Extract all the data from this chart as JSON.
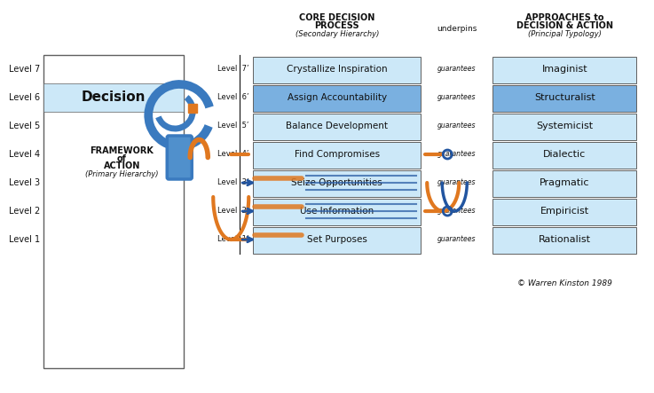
{
  "bg_color": "#ffffff",
  "color_light_blue": "#cce8f8",
  "color_medium_blue": "#7ab0e0",
  "color_dark_blue": "#2255a0",
  "color_orange": "#e07820",
  "color_black": "#111111",
  "color_border": "#606060",
  "center_title_1": "CORE DECISION",
  "center_title_2": "PROCESS",
  "center_subtitle": "(Secondary Hierarchy)",
  "connector_header": "underpins",
  "right_title_1": "APPROACHES to",
  "right_title_2": "DECISION & ACTION",
  "right_subtitle": "(Principal Typology)",
  "left_title_1": "FRAMEWORK",
  "left_title_2": "of",
  "left_title_3": "ACTION",
  "left_subtitle": "(Primary Hierarchy)",
  "decision_label": "Decision",
  "copyright": "© Warren Kinston 1989",
  "connector_word": "guarantees",
  "levels_left": [
    "Level 7",
    "Level 6",
    "Level 5",
    "Level 4",
    "Level 3",
    "Level 2",
    "Level 1"
  ],
  "levels_center": [
    "Level  7’",
    "Level  6’",
    "Level  5’",
    "Level  4’",
    "Level  3’",
    "Level  2’",
    "Level  1’"
  ],
  "processes": [
    "Crystallize Inspiration",
    "Assign Accountability",
    "Balance Development",
    "Find Compromises",
    "Seize Opportunities",
    "Use Information",
    "Set Purposes"
  ],
  "approaches": [
    "Imaginist",
    "Structuralist",
    "Systemicist",
    "Dialectic",
    "Pragmatic",
    "Empiricist",
    "Rationalist"
  ],
  "process_colors": [
    "#cce8f8",
    "#7ab0e0",
    "#cce8f8",
    "#cce8f8",
    "#cce8f8",
    "#cce8f8",
    "#cce8f8"
  ],
  "approach_colors": [
    "#cce8f8",
    "#7ab0e0",
    "#cce8f8",
    "#cce8f8",
    "#cce8f8",
    "#cce8f8",
    "#cce8f8"
  ],
  "decision_level_idx": 1,
  "row_count": 7
}
